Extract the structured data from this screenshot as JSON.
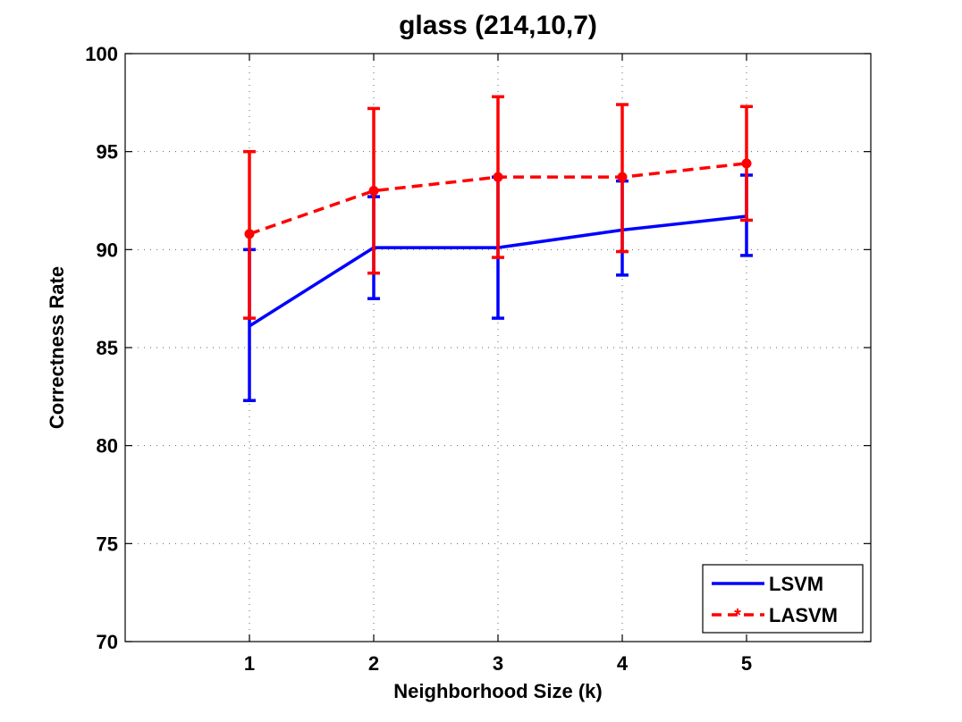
{
  "chart_data": {
    "type": "line",
    "title": "glass (214,10,7)",
    "xlabel": "Neighborhood Size (k)",
    "ylabel": "Correctness Rate",
    "x": [
      1,
      2,
      3,
      4,
      5
    ],
    "xlim": [
      0,
      6
    ],
    "ylim": [
      70,
      100
    ],
    "xticks": [
      1,
      2,
      3,
      4,
      5
    ],
    "yticks": [
      70,
      75,
      80,
      85,
      90,
      95,
      100
    ],
    "grid": true,
    "legend_position": "bottom-right",
    "series": [
      {
        "name": "LSVM",
        "color": "#0000ff",
        "line_style": "solid",
        "marker": "none",
        "values": [
          86.1,
          90.1,
          90.1,
          91.0,
          91.7
        ],
        "error_low": [
          82.3,
          87.5,
          86.5,
          88.7,
          89.7
        ],
        "error_high": [
          90.0,
          92.7,
          93.7,
          93.5,
          93.8
        ]
      },
      {
        "name": "LASVM",
        "color": "#ff0000",
        "line_style": "dashed",
        "marker": "dot",
        "values": [
          90.8,
          93.0,
          93.7,
          93.7,
          94.4
        ],
        "error_low": [
          86.5,
          88.8,
          89.6,
          89.9,
          91.5
        ],
        "error_high": [
          95.0,
          97.2,
          97.8,
          97.4,
          97.3
        ]
      }
    ]
  }
}
